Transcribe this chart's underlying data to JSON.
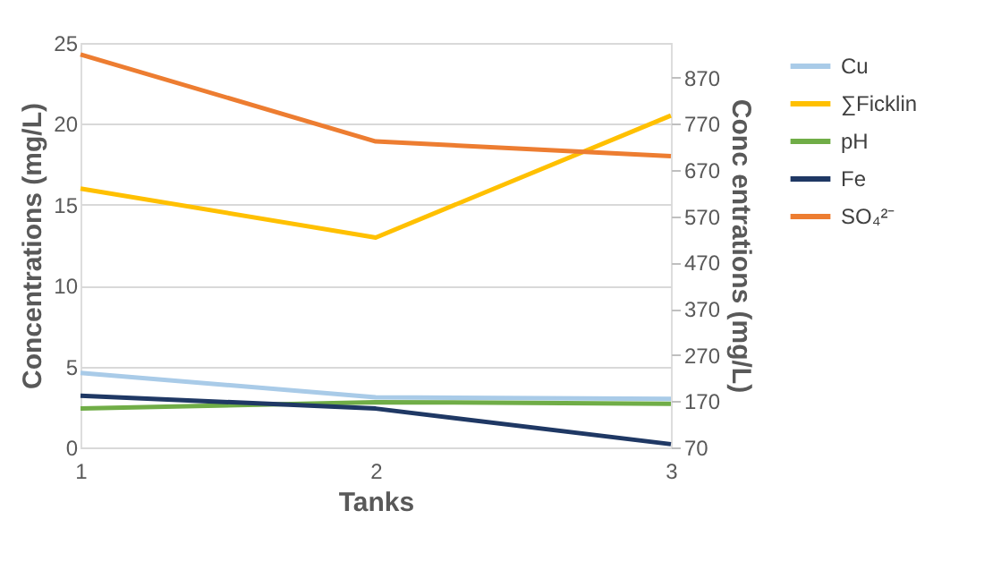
{
  "chart_data": {
    "type": "line",
    "xlabel": "Tanks",
    "ylabel": "Concentrations (mg/L)",
    "y2label": "Conc entrations (mg/L)",
    "x": [
      1,
      2,
      3
    ],
    "xlim": [
      1,
      3
    ],
    "xticks": [
      1,
      2,
      3
    ],
    "ylim": [
      0,
      25
    ],
    "yticks": [
      0,
      5,
      10,
      15,
      20,
      25
    ],
    "y2lim": [
      70,
      945
    ],
    "y2ticks": [
      70,
      170,
      270,
      370,
      470,
      570,
      670,
      770,
      870
    ],
    "grid": "y",
    "legend": "right",
    "marker": "none",
    "line_style": "solid",
    "series": [
      {
        "name": "Cu",
        "color": "#a9cbe8",
        "values": [
          4.6,
          3.1,
          3.0
        ]
      },
      {
        "name": "∑Ficklin",
        "color": "#ffc000",
        "values": [
          630,
          524,
          788
        ],
        "axis": "y2"
      },
      {
        "name": "pH",
        "color": "#70ad47",
        "values": [
          2.4,
          2.8,
          2.7
        ]
      },
      {
        "name": "Fe",
        "color": "#1f3864",
        "values": [
          3.2,
          2.4,
          0.2
        ]
      },
      {
        "name": "SO₄²⁻",
        "color": "#ed7d31",
        "values": [
          920,
          732,
          700
        ],
        "axis": "y2"
      }
    ]
  }
}
